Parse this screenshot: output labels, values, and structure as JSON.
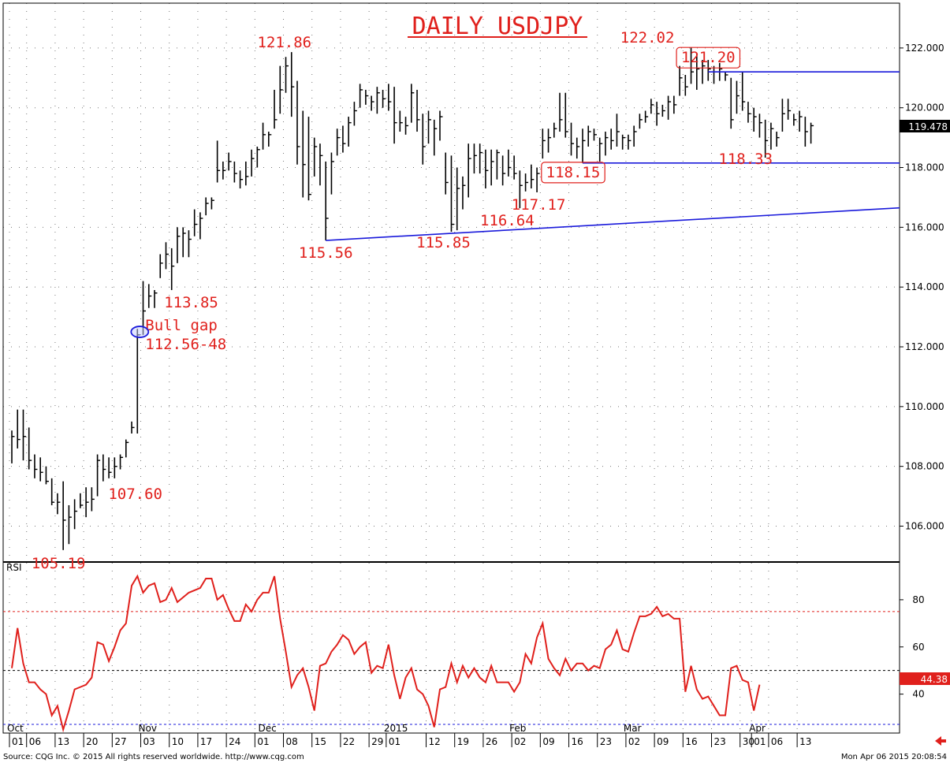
{
  "chart_data": {
    "type": "ohlc",
    "title": "DAILY USDJPY",
    "price_axis": {
      "ylim": [
        104.8,
        123.5
      ],
      "ticks": [
        "122.000",
        "120.000",
        "118.000",
        "116.000",
        "114.000",
        "112.000",
        "110.000",
        "108.000",
        "106.000"
      ]
    },
    "last_price": "119.478",
    "rsi": {
      "label": "RSI",
      "ylim": [
        23.5,
        96
      ],
      "ticks": [
        "80",
        "60",
        "40"
      ],
      "overbought": 75,
      "mid": 50,
      "last_value": "44.38",
      "values": [
        51,
        68,
        53,
        45,
        45,
        42,
        40,
        31,
        35,
        25,
        33,
        42,
        43,
        44,
        47,
        62,
        61,
        54,
        60,
        67,
        70,
        86,
        90,
        83,
        86,
        87,
        79,
        80,
        85,
        79,
        81,
        83,
        84,
        85,
        89,
        89,
        80,
        82,
        76,
        71,
        71,
        78,
        75,
        80,
        83,
        83,
        90,
        72,
        58,
        43,
        48,
        51,
        43,
        33,
        52,
        53,
        58,
        61,
        65,
        63,
        57,
        60,
        62,
        49,
        52,
        51,
        61,
        48,
        38,
        47,
        51,
        42,
        40,
        35,
        26,
        42,
        43,
        53,
        45,
        52,
        47,
        51,
        47,
        45,
        52,
        45,
        45,
        45,
        41,
        45,
        57,
        53,
        64,
        70,
        55,
        51,
        48,
        55,
        50,
        53,
        53,
        50,
        52,
        51,
        59,
        61,
        67,
        59,
        58,
        66,
        73,
        73,
        74,
        77,
        73,
        74,
        72,
        72,
        41,
        52,
        42,
        38,
        39,
        35,
        31,
        31,
        51,
        52,
        46,
        45,
        33,
        44
      ]
    },
    "bars": [
      [
        109.2,
        108.1,
        109.0
      ],
      [
        109.9,
        108.6,
        108.9
      ],
      [
        109.9,
        108.2,
        109.0
      ],
      [
        109.3,
        107.9,
        108.2
      ],
      [
        108.4,
        107.6,
        107.9
      ],
      [
        108.3,
        107.5,
        107.8
      ],
      [
        108.0,
        107.4,
        107.5
      ],
      [
        107.6,
        106.7,
        106.8
      ],
      [
        107.1,
        106.4,
        106.8
      ],
      [
        107.5,
        105.2,
        106.2
      ],
      [
        106.7,
        105.4,
        106.3
      ],
      [
        106.9,
        105.9,
        106.5
      ],
      [
        107.1,
        106.6,
        106.7
      ],
      [
        107.3,
        106.3,
        106.8
      ],
      [
        107.3,
        106.5,
        106.9
      ],
      [
        108.4,
        107.0,
        108.2
      ],
      [
        108.4,
        107.5,
        107.9
      ],
      [
        108.3,
        107.6,
        107.8
      ],
      [
        108.3,
        107.6,
        108.0
      ],
      [
        108.4,
        107.9,
        108.3
      ],
      [
        108.9,
        108.3,
        108.8
      ],
      [
        109.5,
        109.1,
        109.3
      ],
      [
        112.6,
        109.1,
        112.4
      ],
      [
        114.2,
        112.4,
        113.2
      ],
      [
        114.1,
        113.3,
        113.7
      ],
      [
        113.9,
        113.3,
        113.8
      ],
      [
        115.1,
        114.3,
        114.8
      ],
      [
        115.5,
        114.6,
        115.1
      ],
      [
        115.3,
        113.9,
        114.7
      ],
      [
        116.0,
        114.8,
        115.7
      ],
      [
        116.0,
        115.0,
        115.8
      ],
      [
        115.9,
        115.0,
        115.6
      ],
      [
        116.6,
        115.7,
        116.1
      ],
      [
        116.5,
        115.6,
        116.3
      ],
      [
        117.0,
        116.4,
        116.8
      ],
      [
        117.0,
        116.6,
        116.9
      ],
      [
        118.9,
        117.5,
        117.9
      ],
      [
        118.2,
        117.6,
        117.9
      ],
      [
        118.5,
        117.9,
        118.2
      ],
      [
        118.2,
        117.5,
        117.8
      ],
      [
        117.9,
        117.3,
        117.6
      ],
      [
        118.2,
        117.4,
        117.7
      ],
      [
        118.6,
        117.7,
        118.3
      ],
      [
        118.7,
        118.0,
        118.6
      ],
      [
        119.5,
        118.6,
        119.1
      ],
      [
        119.2,
        118.7,
        119.1
      ],
      [
        120.6,
        119.3,
        119.6
      ],
      [
        121.4,
        119.8,
        120.6
      ],
      [
        121.7,
        120.5,
        121.4
      ],
      [
        121.86,
        119.7,
        120.7
      ],
      [
        120.9,
        118.1,
        118.7
      ],
      [
        119.9,
        117.0,
        118.1
      ],
      [
        119.7,
        116.9,
        117.1
      ],
      [
        119.0,
        117.7,
        118.7
      ],
      [
        118.8,
        117.4,
        118.4
      ],
      [
        118.2,
        115.56,
        116.3
      ],
      [
        118.5,
        117.1,
        118.2
      ],
      [
        119.3,
        118.4,
        119.0
      ],
      [
        119.4,
        118.5,
        118.8
      ],
      [
        119.7,
        118.7,
        119.5
      ],
      [
        120.2,
        119.4,
        119.9
      ],
      [
        120.8,
        120.0,
        120.6
      ],
      [
        120.6,
        120.1,
        120.4
      ],
      [
        120.4,
        119.9,
        120.2
      ],
      [
        120.7,
        119.8,
        120.5
      ],
      [
        120.6,
        120.0,
        120.3
      ],
      [
        120.8,
        119.9,
        120.2
      ],
      [
        120.7,
        118.8,
        119.5
      ],
      [
        119.9,
        119.2,
        119.5
      ],
      [
        119.7,
        119.1,
        119.4
      ],
      [
        120.8,
        119.5,
        120.5
      ],
      [
        120.6,
        119.2,
        119.6
      ],
      [
        119.8,
        118.1,
        118.7
      ],
      [
        119.9,
        118.8,
        119.6
      ],
      [
        119.6,
        118.4,
        119.3
      ],
      [
        119.9,
        118.9,
        119.7
      ],
      [
        118.5,
        117.1,
        117.5
      ],
      [
        118.4,
        115.85,
        116.1
      ],
      [
        118.0,
        115.9,
        117.3
      ],
      [
        117.7,
        116.6,
        117.4
      ],
      [
        118.8,
        117.0,
        118.3
      ],
      [
        118.8,
        117.8,
        118.4
      ],
      [
        118.8,
        117.8,
        118.5
      ],
      [
        118.6,
        117.3,
        117.9
      ],
      [
        118.6,
        117.4,
        118.2
      ],
      [
        118.6,
        117.6,
        118.5
      ],
      [
        118.4,
        117.4,
        117.8
      ],
      [
        118.6,
        117.7,
        118.0
      ],
      [
        118.4,
        117.6,
        117.8
      ],
      [
        117.9,
        116.64,
        117.4
      ],
      [
        117.8,
        117.2,
        117.5
      ],
      [
        118.1,
        117.3,
        117.6
      ],
      [
        118.0,
        117.17,
        117.8
      ],
      [
        119.3,
        118.3,
        118.9
      ],
      [
        119.3,
        118.5,
        119.0
      ],
      [
        119.5,
        119.0,
        119.3
      ],
      [
        120.5,
        119.2,
        119.6
      ],
      [
        120.5,
        119.0,
        119.2
      ],
      [
        119.5,
        118.4,
        118.8
      ],
      [
        119.0,
        118.3,
        118.7
      ],
      [
        119.3,
        118.15,
        118.9
      ],
      [
        119.4,
        118.7,
        119.2
      ],
      [
        119.3,
        118.9,
        119.1
      ],
      [
        119.0,
        118.2,
        118.8
      ],
      [
        119.2,
        118.4,
        119.0
      ],
      [
        119.3,
        118.6,
        118.9
      ],
      [
        119.8,
        118.7,
        119.2
      ],
      [
        119.1,
        118.6,
        119.0
      ],
      [
        119.1,
        118.6,
        118.9
      ],
      [
        119.4,
        118.7,
        119.2
      ],
      [
        119.8,
        119.3,
        119.6
      ],
      [
        119.9,
        119.5,
        119.7
      ],
      [
        120.3,
        119.8,
        120.1
      ],
      [
        120.2,
        119.4,
        119.8
      ],
      [
        120.1,
        119.7,
        119.9
      ],
      [
        120.4,
        119.6,
        120.2
      ],
      [
        120.4,
        119.8,
        120.1
      ],
      [
        121.4,
        120.4,
        121.0
      ],
      [
        121.1,
        120.4,
        120.7
      ],
      [
        122.02,
        120.8,
        121.2
      ],
      [
        121.8,
        120.6,
        121.3
      ],
      [
        121.6,
        120.8,
        121.4
      ],
      [
        121.6,
        120.9,
        121.3
      ],
      [
        121.4,
        120.8,
        121.2
      ],
      [
        121.5,
        120.9,
        121.3
      ],
      [
        121.2,
        120.9,
        121.1
      ],
      [
        121.0,
        119.3,
        119.6
      ],
      [
        120.9,
        119.8,
        120.4
      ],
      [
        121.2,
        119.9,
        120.2
      ],
      [
        120.2,
        119.5,
        119.8
      ],
      [
        120.0,
        119.2,
        119.7
      ],
      [
        119.8,
        119.0,
        119.5
      ],
      [
        119.6,
        118.33,
        118.9
      ],
      [
        119.5,
        118.6,
        119.3
      ],
      [
        119.2,
        118.7,
        119.0
      ],
      [
        120.3,
        119.2,
        119.8
      ],
      [
        120.3,
        119.6,
        119.9
      ],
      [
        119.8,
        119.4,
        119.6
      ],
      [
        119.9,
        119.2,
        119.7
      ],
      [
        119.7,
        118.7,
        119.2
      ],
      [
        119.5,
        118.8,
        119.4
      ]
    ],
    "annotations": [
      {
        "text": "121.86",
        "bar": 49,
        "price": 121.86
      },
      {
        "text": "122.02",
        "bar": 113,
        "price": 122.02
      },
      {
        "text": "121.20",
        "bar": 122,
        "price": 121.2,
        "boxed": true
      },
      {
        "text": "118.15",
        "bar": 100,
        "price": 118.15,
        "boxed": true
      },
      {
        "text": "118.33",
        "bar": 128,
        "price": 118.33
      },
      {
        "text": "117.17",
        "bar": 92,
        "price": 117.17
      },
      {
        "text": "116.64",
        "bar": 89,
        "price": 116.64
      },
      {
        "text": "115.85",
        "bar": 77,
        "price": 115.85
      },
      {
        "text": "115.56",
        "bar": 55,
        "price": 115.56
      },
      {
        "text": "113.85",
        "bar": 26,
        "price": 113.85
      },
      {
        "text": "Bull gap",
        "bar": 22,
        "price": 112.5
      },
      {
        "text": "112.56-48",
        "bar": 22,
        "price": 112.5
      },
      {
        "text": "107.60",
        "bar": 18,
        "price": 107.6
      },
      {
        "text": "105.19",
        "bar": 9,
        "price": 105.19
      }
    ],
    "lines": [
      {
        "name": "support-trendline",
        "from": {
          "bar": 55,
          "price": 115.56
        },
        "to": {
          "bar": 165,
          "price": 116.65
        }
      },
      {
        "name": "resistance-line-121-20",
        "from": {
          "bar": 122,
          "price": 121.2
        },
        "to": {
          "bar": 165,
          "price": 121.2
        }
      },
      {
        "name": "support-line-118-15",
        "from": {
          "bar": 100,
          "price": 118.15
        },
        "to": {
          "bar": 165,
          "price": 118.15
        }
      }
    ],
    "x_axis": {
      "months": [
        {
          "label": "Oct",
          "bar": 0
        },
        {
          "label": "Nov",
          "bar": 23
        },
        {
          "label": "Dec",
          "bar": 44
        },
        {
          "label": "2015",
          "bar": 66
        },
        {
          "label": "Feb",
          "bar": 88
        },
        {
          "label": "Mar",
          "bar": 108
        },
        {
          "label": "Apr",
          "bar": 130
        }
      ],
      "days": [
        {
          "label": "01",
          "bar": 0
        },
        {
          "label": "06",
          "bar": 3
        },
        {
          "label": "13",
          "bar": 8
        },
        {
          "label": "20",
          "bar": 13
        },
        {
          "label": "27",
          "bar": 18
        },
        {
          "label": "03",
          "bar": 23
        },
        {
          "label": "10",
          "bar": 28
        },
        {
          "label": "17",
          "bar": 33
        },
        {
          "label": "24",
          "bar": 38
        },
        {
          "label": "01",
          "bar": 43
        },
        {
          "label": "08",
          "bar": 48
        },
        {
          "label": "15",
          "bar": 53
        },
        {
          "label": "22",
          "bar": 58
        },
        {
          "label": "29",
          "bar": 63
        },
        {
          "label": "01",
          "bar": 66
        },
        {
          "label": "12",
          "bar": 73
        },
        {
          "label": "19",
          "bar": 78
        },
        {
          "label": "26",
          "bar": 83
        },
        {
          "label": "02",
          "bar": 88
        },
        {
          "label": "09",
          "bar": 93
        },
        {
          "label": "16",
          "bar": 98
        },
        {
          "label": "23",
          "bar": 103
        },
        {
          "label": "02",
          "bar": 108
        },
        {
          "label": "09",
          "bar": 113
        },
        {
          "label": "16",
          "bar": 118
        },
        {
          "label": "23",
          "bar": 123
        },
        {
          "label": "30",
          "bar": 128
        },
        {
          "label": "01",
          "bar": 130
        },
        {
          "label": "06",
          "bar": 133
        },
        {
          "label": "13",
          "bar": 138
        }
      ]
    },
    "grid": true
  },
  "footer": {
    "source": "Source: CQG Inc. © 2015 All rights reserved worldwide. http://www.cqg.com",
    "timestamp": "Mon Apr 06 2015 20:08:54"
  },
  "colors": {
    "bars": "#000000",
    "annotations": "#e0201c",
    "lines": "#1a1adb",
    "rsi": "#e0201c",
    "last_price_bg": "#000000",
    "rsi_badge_bg": "#e0201c"
  }
}
